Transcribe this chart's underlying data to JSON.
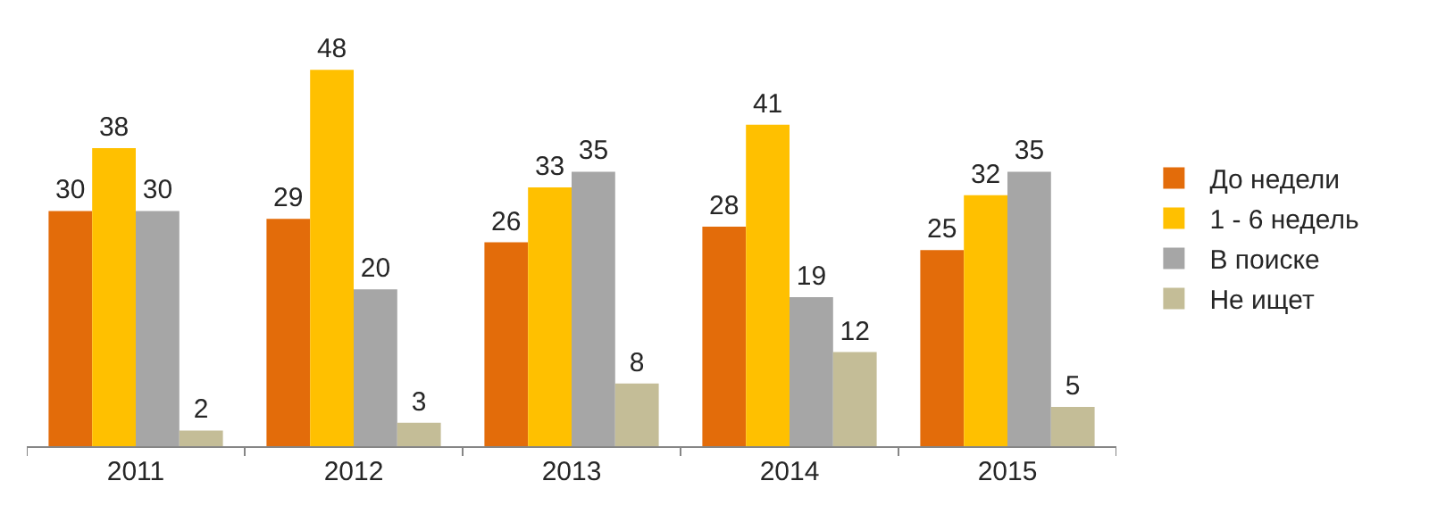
{
  "chart_data": {
    "type": "bar",
    "categories": [
      "2011",
      "2012",
      "2013",
      "2014",
      "2015"
    ],
    "series": [
      {
        "name": "До недели",
        "color": "#e36c0a",
        "values": [
          30,
          29,
          26,
          28,
          25
        ]
      },
      {
        "name": "1 - 6 недель",
        "color": "#ffc000",
        "values": [
          38,
          48,
          33,
          41,
          32
        ]
      },
      {
        "name": "В поиске",
        "color": "#a6a6a6",
        "values": [
          30,
          20,
          35,
          19,
          35
        ]
      },
      {
        "name": "Не ищет",
        "color": "#c4bd97",
        "values": [
          2,
          3,
          8,
          12,
          5
        ]
      }
    ],
    "data_labels": true,
    "legend": "right"
  }
}
